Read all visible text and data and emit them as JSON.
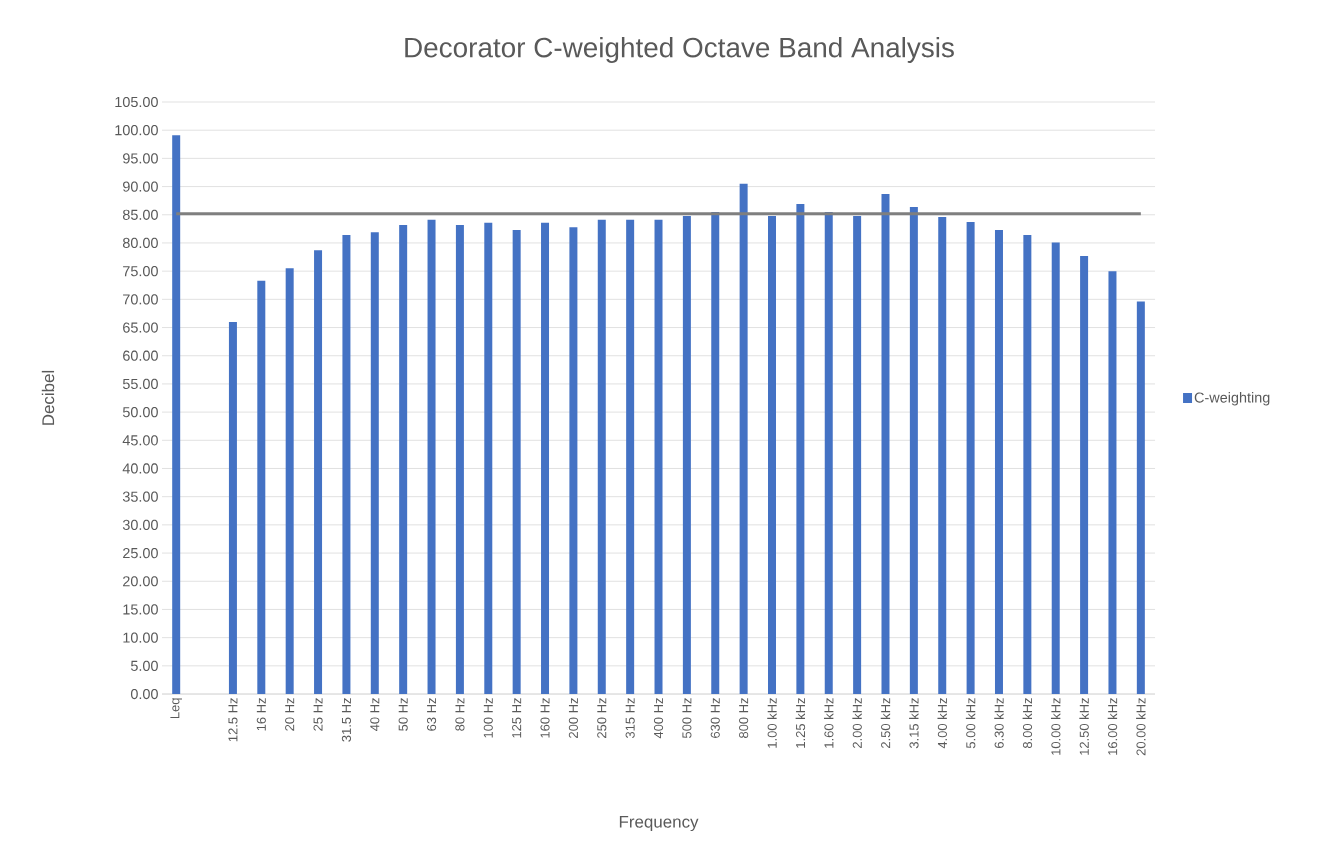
{
  "chart_data": {
    "type": "bar",
    "title": "Decorator C-weighted Octave Band Analysis",
    "xlabel": "Frequency",
    "ylabel": "Decibel",
    "categories": [
      "Leq",
      null,
      "12.5 Hz",
      "16 Hz",
      "20 Hz",
      "25 Hz",
      "31.5 Hz",
      "40 Hz",
      "50 Hz",
      "63 Hz",
      "80 Hz",
      "100 Hz",
      "125 Hz",
      "160 Hz",
      "200 Hz",
      "250 Hz",
      "315 Hz",
      "400 Hz",
      "500 Hz",
      "630 Hz",
      "800 Hz",
      "1.00 kHz",
      "1.25 kHz",
      "1.60 kHz",
      "2.00 kHz",
      "2.50 kHz",
      "3.15 kHz",
      "4.00 kHz",
      "5.00 kHz",
      "6.30 kHz",
      "8.00 kHz",
      "10.00 kHz",
      "12.50 kHz",
      "16.00 kHz",
      "20.00 kHz"
    ],
    "series": [
      {
        "name": "C-weighting",
        "color": "#4472c4",
        "values": [
          99.1,
          null,
          66.0,
          73.3,
          75.5,
          78.7,
          81.4,
          81.9,
          83.2,
          84.1,
          83.2,
          83.6,
          82.3,
          83.6,
          82.8,
          84.1,
          84.1,
          84.1,
          84.8,
          85.5,
          90.5,
          84.8,
          86.9,
          85.5,
          84.8,
          88.7,
          86.4,
          84.6,
          83.7,
          82.3,
          81.4,
          80.1,
          77.7,
          75.0,
          69.6
        ]
      }
    ],
    "ylim": [
      0,
      105
    ],
    "yticks": [
      {
        "value": 0,
        "label": "0.00"
      },
      {
        "value": 5,
        "label": "5.00"
      },
      {
        "value": 10,
        "label": "10.00"
      },
      {
        "value": 15,
        "label": "15.00"
      },
      {
        "value": 20,
        "label": "20.00"
      },
      {
        "value": 25,
        "label": "25.00"
      },
      {
        "value": 30,
        "label": "30.00"
      },
      {
        "value": 35,
        "label": "35.00"
      },
      {
        "value": 40,
        "label": "40.00"
      },
      {
        "value": 45,
        "label": "45.00"
      },
      {
        "value": 50,
        "label": "50.00"
      },
      {
        "value": 55,
        "label": "55.00"
      },
      {
        "value": 60,
        "label": "60.00"
      },
      {
        "value": 65,
        "label": "65.00"
      },
      {
        "value": 70,
        "label": "70.00"
      },
      {
        "value": 75,
        "label": "75.00"
      },
      {
        "value": 80,
        "label": "80.00"
      },
      {
        "value": 85,
        "label": "85.00"
      },
      {
        "value": 90,
        "label": "90.00"
      },
      {
        "value": 95,
        "label": "95.00"
      },
      {
        "value": 100,
        "label": "100.00"
      },
      {
        "value": 105,
        "label": "105.00"
      }
    ],
    "ref_lines": [
      {
        "axis": "y",
        "value": 85.2,
        "color": "#7f7f7f"
      }
    ],
    "grid": "y",
    "legend": "right"
  }
}
